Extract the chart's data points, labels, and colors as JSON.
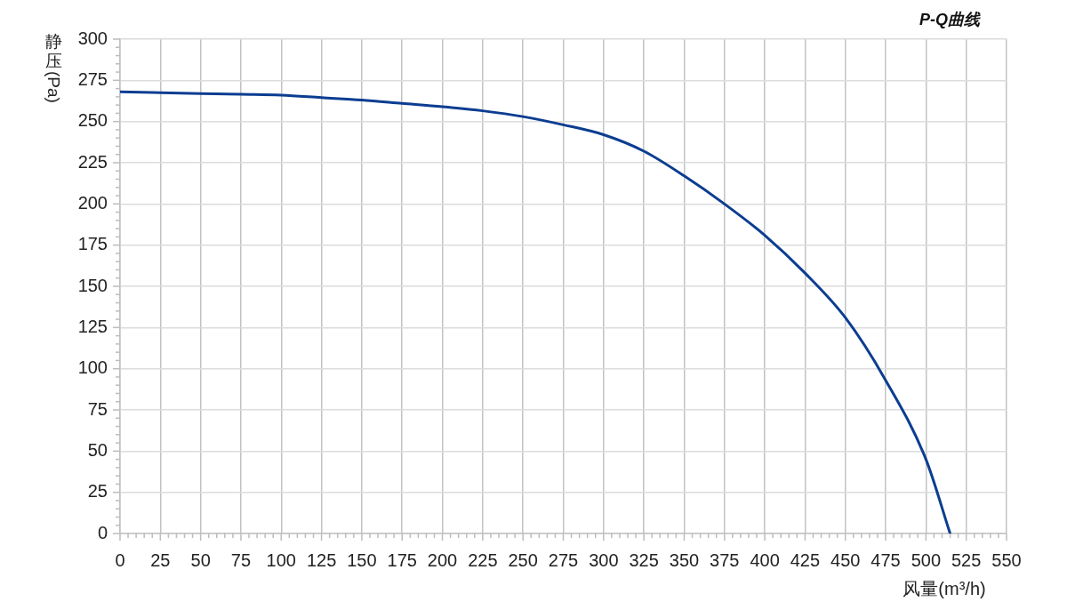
{
  "chart_data": {
    "type": "line",
    "title": "P-Q曲线",
    "xlabel": "风量(m³/h)",
    "ylabel": "静压(Pa)",
    "x": [
      0,
      25,
      50,
      75,
      100,
      125,
      150,
      175,
      200,
      225,
      250,
      275,
      300,
      325,
      350,
      375,
      400,
      425,
      450,
      475,
      500,
      515
    ],
    "series": [
      {
        "color": "#0b3d91",
        "values": [
          268,
          267.5,
          267,
          266.5,
          266,
          264.5,
          263,
          261,
          259,
          256.5,
          253,
          248,
          242,
          232,
          217,
          200,
          181,
          158,
          131,
          93,
          45,
          0
        ]
      }
    ],
    "xlim": [
      0,
      550
    ],
    "ylim": [
      0,
      300
    ],
    "xticks": [
      0,
      {
        "value": 5,
        "label": null
      },
      {
        "value": 10,
        "label": null
      },
      {
        "value": 15,
        "label": null
      },
      {
        "value": 20,
        "label": null
      },
      25,
      {
        "value": 30,
        "label": null
      },
      {
        "value": 35,
        "label": null
      },
      {
        "value": 40,
        "label": null
      },
      {
        "value": 45,
        "label": null
      },
      50,
      {
        "value": 55,
        "label": null
      },
      {
        "value": 60,
        "label": null
      },
      {
        "value": 65,
        "label": null
      },
      {
        "value": 70,
        "label": null
      },
      75,
      {
        "value": 80,
        "label": null
      },
      {
        "value": 85,
        "label": null
      },
      {
        "value": 90,
        "label": null
      },
      {
        "value": 95,
        "label": null
      },
      100,
      {
        "value": 105,
        "label": null
      },
      {
        "value": 110,
        "label": null
      },
      {
        "value": 115,
        "label": null
      },
      {
        "value": 120,
        "label": null
      },
      125,
      {
        "value": 130,
        "label": null
      },
      {
        "value": 135,
        "label": null
      },
      {
        "value": 140,
        "label": null
      },
      {
        "value": 145,
        "label": null
      },
      150,
      {
        "value": 155,
        "label": null
      },
      {
        "value": 160,
        "label": null
      },
      {
        "value": 165,
        "label": null
      },
      {
        "value": 170,
        "label": null
      },
      175,
      {
        "value": 180,
        "label": null
      },
      {
        "value": 185,
        "label": null
      },
      {
        "value": 190,
        "label": null
      },
      {
        "value": 195,
        "label": null
      },
      200,
      {
        "value": 205,
        "label": null
      },
      {
        "value": 210,
        "label": null
      },
      {
        "value": 215,
        "label": null
      },
      {
        "value": 220,
        "label": null
      },
      225,
      {
        "value": 230,
        "label": null
      },
      {
        "value": 235,
        "label": null
      },
      {
        "value": 240,
        "label": null
      },
      {
        "value": 245,
        "label": null
      },
      250,
      {
        "value": 255,
        "label": null
      },
      {
        "value": 260,
        "label": null
      },
      {
        "value": 265,
        "label": null
      },
      {
        "value": 270,
        "label": null
      },
      275,
      {
        "value": 280,
        "label": null
      },
      {
        "value": 285,
        "label": null
      },
      {
        "value": 290,
        "label": null
      },
      {
        "value": 295,
        "label": null
      },
      300,
      {
        "value": 305,
        "label": null
      },
      {
        "value": 310,
        "label": null
      },
      {
        "value": 315,
        "label": null
      },
      {
        "value": 320,
        "label": null
      },
      325,
      {
        "value": 330,
        "label": null
      },
      {
        "value": 335,
        "label": null
      },
      {
        "value": 340,
        "label": null
      },
      {
        "value": 345,
        "label": null
      },
      350,
      {
        "value": 355,
        "label": null
      },
      {
        "value": 360,
        "label": null
      },
      {
        "value": 365,
        "label": null
      },
      {
        "value": 370,
        "label": null
      },
      375,
      {
        "value": 380,
        "label": null
      },
      {
        "value": 385,
        "label": null
      },
      {
        "value": 390,
        "label": null
      },
      {
        "value": 395,
        "label": null
      },
      400,
      {
        "value": 405,
        "label": null
      },
      {
        "value": 410,
        "label": null
      },
      {
        "value": 415,
        "label": null
      },
      {
        "value": 420,
        "label": null
      },
      425,
      {
        "value": 430,
        "label": null
      },
      {
        "value": 435,
        "label": null
      },
      {
        "value": 440,
        "label": null
      },
      {
        "value": 445,
        "label": null
      },
      450,
      {
        "value": 455,
        "label": null
      },
      {
        "value": 460,
        "label": null
      },
      {
        "value": 465,
        "label": null
      },
      {
        "value": 470,
        "label": null
      },
      475,
      {
        "value": 480,
        "label": null
      },
      {
        "value": 485,
        "label": null
      },
      {
        "value": 490,
        "label": null
      },
      {
        "value": 495,
        "label": null
      },
      500,
      {
        "value": 505,
        "label": null
      },
      {
        "value": 510,
        "label": null
      },
      {
        "value": 515,
        "label": null
      },
      {
        "value": 520,
        "label": null
      },
      525,
      {
        "value": 530,
        "label": null
      },
      {
        "value": 535,
        "label": null
      },
      {
        "value": 540,
        "label": null
      },
      {
        "value": 545,
        "label": null
      },
      550
    ],
    "yticks": [
      0,
      {
        "value": 5,
        "label": null
      },
      {
        "value": 10,
        "label": null
      },
      {
        "value": 15,
        "label": null
      },
      {
        "value": 20,
        "label": null
      },
      25,
      {
        "value": 30,
        "label": null
      },
      {
        "value": 35,
        "label": null
      },
      {
        "value": 40,
        "label": null
      },
      {
        "value": 45,
        "label": null
      },
      50,
      {
        "value": 55,
        "label": null
      },
      {
        "value": 60,
        "label": null
      },
      {
        "value": 65,
        "label": null
      },
      {
        "value": 70,
        "label": null
      },
      75,
      {
        "value": 80,
        "label": null
      },
      {
        "value": 85,
        "label": null
      },
      {
        "value": 90,
        "label": null
      },
      {
        "value": 95,
        "label": null
      },
      100,
      {
        "value": 105,
        "label": null
      },
      {
        "value": 110,
        "label": null
      },
      {
        "value": 115,
        "label": null
      },
      {
        "value": 120,
        "label": null
      },
      125,
      {
        "value": 130,
        "label": null
      },
      {
        "value": 135,
        "label": null
      },
      {
        "value": 140,
        "label": null
      },
      {
        "value": 145,
        "label": null
      },
      150,
      {
        "value": 155,
        "label": null
      },
      {
        "value": 160,
        "label": null
      },
      {
        "value": 165,
        "label": null
      },
      {
        "value": 170,
        "label": null
      },
      175,
      {
        "value": 180,
        "label": null
      },
      {
        "value": 185,
        "label": null
      },
      {
        "value": 190,
        "label": null
      },
      {
        "value": 195,
        "label": null
      },
      200,
      {
        "value": 205,
        "label": null
      },
      {
        "value": 210,
        "label": null
      },
      {
        "value": 215,
        "label": null
      },
      {
        "value": 220,
        "label": null
      },
      225,
      {
        "value": 230,
        "label": null
      },
      {
        "value": 235,
        "label": null
      },
      {
        "value": 240,
        "label": null
      },
      {
        "value": 245,
        "label": null
      },
      250,
      {
        "value": 255,
        "label": null
      },
      {
        "value": 260,
        "label": null
      },
      {
        "value": 265,
        "label": null
      },
      {
        "value": 270,
        "label": null
      },
      275,
      {
        "value": 280,
        "label": null
      },
      {
        "value": 285,
        "label": null
      },
      {
        "value": 290,
        "label": null
      },
      {
        "value": 295,
        "label": null
      },
      300
    ],
    "grid": true,
    "marker": "none",
    "line_style": "solid"
  }
}
